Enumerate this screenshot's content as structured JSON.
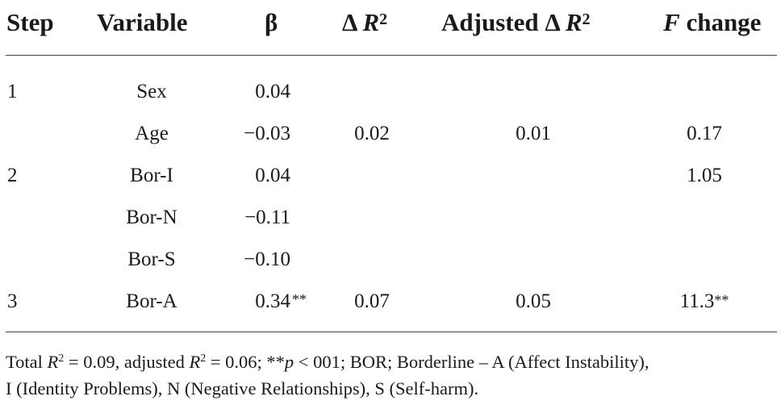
{
  "headers": {
    "step": "Step",
    "variable": "Variable",
    "beta": "β",
    "delta_r2_prefix": "Δ ",
    "delta_r2_var": "R",
    "delta_r2_sup": "2",
    "adj_delta_r2_prefix": "Adjusted Δ ",
    "adj_delta_r2_var": "R",
    "adj_delta_r2_sup": "2",
    "f_change_var": "F",
    "f_change_rest": " change"
  },
  "rows": [
    {
      "step": "1",
      "variable": "Sex",
      "beta": "0.04",
      "beta_sig": "",
      "delta_r2": "",
      "adj_delta_r2": "",
      "f_change": "",
      "f_sig": ""
    },
    {
      "step": "",
      "variable": "Age",
      "beta": "−0.03",
      "beta_sig": "",
      "delta_r2": "0.02",
      "adj_delta_r2": "0.01",
      "f_change": "0.17",
      "f_sig": ""
    },
    {
      "step": "2",
      "variable": "Bor-I",
      "beta": "0.04",
      "beta_sig": "",
      "delta_r2": "",
      "adj_delta_r2": "",
      "f_change": "1.05",
      "f_sig": ""
    },
    {
      "step": "",
      "variable": "Bor-N",
      "beta": "−0.11",
      "beta_sig": "",
      "delta_r2": "",
      "adj_delta_r2": "",
      "f_change": "",
      "f_sig": ""
    },
    {
      "step": "",
      "variable": "Bor-S",
      "beta": "−0.10",
      "beta_sig": "",
      "delta_r2": "",
      "adj_delta_r2": "",
      "f_change": "",
      "f_sig": ""
    },
    {
      "step": "3",
      "variable": "Bor-A",
      "beta": "0.34",
      "beta_sig": "**",
      "delta_r2": "0.07",
      "adj_delta_r2": "0.05",
      "f_change": "11.3",
      "f_sig": "**"
    }
  ],
  "footnote": {
    "total_prefix": "Total ",
    "r_var": "R",
    "r_sup": "2",
    "eq1": " = 0.09, adjusted ",
    "r_var2": "R",
    "r_sup2": "2",
    "eq2": " = 0.06; **",
    "p_var": "p",
    "eq3": " < 001; BOR; Borderline – A (Affect Instability),",
    "line2": "I (Identity Problems), N (Negative Relationships), S (Self-harm)."
  }
}
